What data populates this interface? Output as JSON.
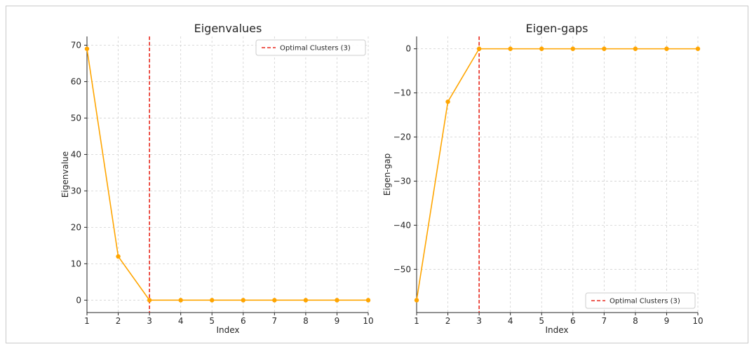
{
  "colors": {
    "series": "#ffa500",
    "marker_line": "#e8271c",
    "grid": "#d0d0d0",
    "axis": "#262626"
  },
  "chart_data": [
    {
      "type": "line",
      "title": "Eigenvalues",
      "xlabel": "Index",
      "ylabel": "Eigenvalue",
      "x": [
        1,
        2,
        3,
        4,
        5,
        6,
        7,
        8,
        9,
        10
      ],
      "xlim": [
        1,
        10
      ],
      "ylim": [
        -3.4,
        72.4
      ],
      "xticks": [
        1,
        2,
        3,
        4,
        5,
        6,
        7,
        8,
        9,
        10
      ],
      "yticks": [
        0,
        10,
        20,
        30,
        40,
        50,
        60,
        70
      ],
      "series": [
        {
          "values": [
            69,
            12,
            0,
            0,
            0,
            0,
            0,
            0,
            0,
            0
          ]
        }
      ],
      "vline": {
        "x": 3,
        "label": "Optimal Clusters (3)",
        "style": "dashed"
      },
      "grid": true,
      "legend": "top-right"
    },
    {
      "type": "line",
      "title": "Eigen-gaps",
      "xlabel": "Index",
      "ylabel": "Eigen-gap",
      "x": [
        1,
        2,
        3,
        4,
        5,
        6,
        7,
        8,
        9,
        10
      ],
      "xlim": [
        1,
        10
      ],
      "ylim": [
        -59.8,
        2.8
      ],
      "xticks": [
        1,
        2,
        3,
        4,
        5,
        6,
        7,
        8,
        9,
        10
      ],
      "yticks": [
        0,
        -10,
        -20,
        -30,
        -40,
        -50
      ],
      "series": [
        {
          "values": [
            -57,
            -12,
            0,
            0,
            0,
            0,
            0,
            0,
            0,
            0
          ]
        }
      ],
      "vline": {
        "x": 3,
        "label": "Optimal Clusters (3)",
        "style": "dashed"
      },
      "grid": true,
      "legend": "bottom-right"
    }
  ]
}
